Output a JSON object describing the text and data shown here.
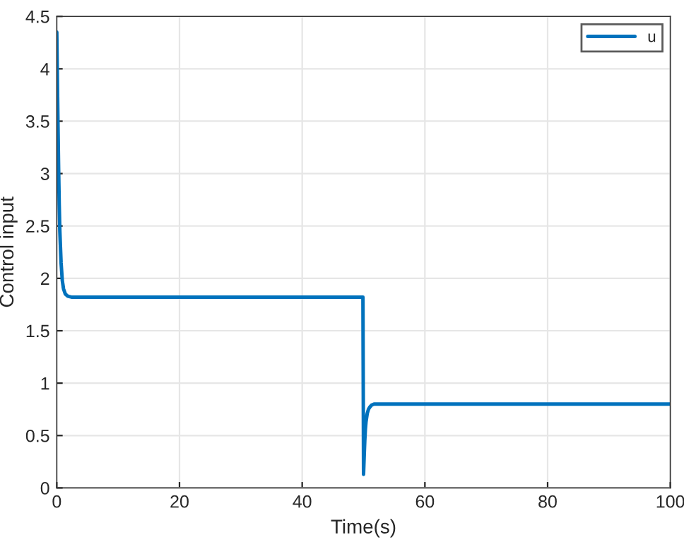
{
  "chart_data": {
    "type": "line",
    "xlabel": "Time(s)",
    "ylabel": "Control input",
    "series": [
      {
        "name": "u",
        "color": "#0072bd",
        "x": [
          0,
          0.1,
          0.2,
          0.3,
          0.4,
          0.5,
          0.7,
          0.9,
          1.1,
          1.4,
          1.8,
          2.5,
          5,
          20,
          40,
          49.9,
          50,
          50.1,
          50.2,
          50.3,
          50.4,
          50.6,
          50.8,
          51,
          51.3,
          51.7,
          52.5,
          55,
          70,
          100
        ],
        "values": [
          4.35,
          3.9,
          3.45,
          3.05,
          2.7,
          2.45,
          2.15,
          1.98,
          1.9,
          1.85,
          1.83,
          1.82,
          1.82,
          1.82,
          1.82,
          1.82,
          0.13,
          0.3,
          0.45,
          0.56,
          0.63,
          0.71,
          0.75,
          0.77,
          0.79,
          0.8,
          0.8,
          0.8,
          0.8,
          0.8
        ]
      }
    ],
    "xlim": [
      0,
      100
    ],
    "xticks": [
      0,
      20,
      40,
      60,
      80,
      100
    ],
    "ylim": [
      0,
      4.5
    ],
    "yticks": [
      0,
      0.5,
      1,
      1.5,
      2,
      2.5,
      3,
      3.5,
      4,
      4.5
    ],
    "grid": true,
    "legend": "top right",
    "line_style": "solid",
    "marker": "none"
  }
}
